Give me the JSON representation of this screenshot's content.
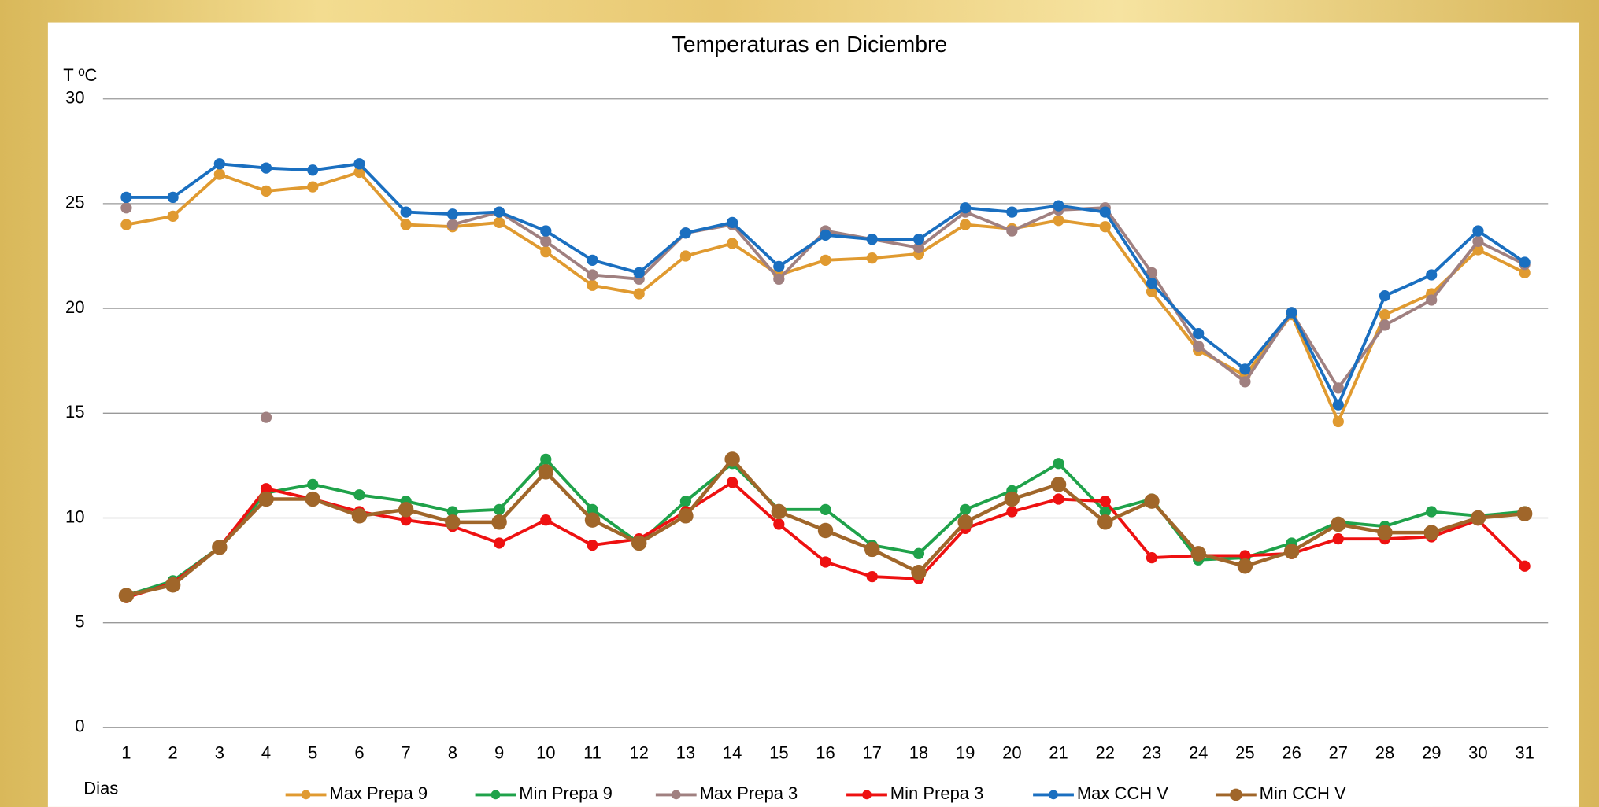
{
  "chart_data": {
    "type": "line",
    "title": "Temperaturas en Diciembre",
    "y_label": "T ºC",
    "x_label": "Dias",
    "categories": [
      "1",
      "2",
      "3",
      "4",
      "5",
      "6",
      "7",
      "8",
      "9",
      "10",
      "11",
      "12",
      "13",
      "14",
      "15",
      "16",
      "17",
      "18",
      "19",
      "20",
      "21",
      "22",
      "23",
      "24",
      "25",
      "26",
      "27",
      "28",
      "29",
      "30",
      "31"
    ],
    "ylim": [
      0,
      30
    ],
    "yticks": [
      0,
      5,
      10,
      15,
      20,
      25,
      30
    ],
    "grid": true,
    "legend": "bottom",
    "series": [
      {
        "name": "Max Prepa 9",
        "color": "#e09a30",
        "values": [
          24.0,
          24.4,
          26.4,
          25.6,
          25.8,
          26.5,
          24.0,
          23.9,
          24.1,
          22.7,
          21.1,
          20.7,
          22.5,
          23.1,
          21.6,
          22.3,
          22.4,
          22.6,
          24.0,
          23.8,
          24.2,
          23.9,
          20.8,
          18.0,
          16.8,
          19.7,
          14.6,
          19.7,
          20.7,
          22.8,
          21.7
        ]
      },
      {
        "name": "Min Prepa 9",
        "color": "#1fa24a",
        "values": [
          6.3,
          7.0,
          8.6,
          11.2,
          11.6,
          11.1,
          10.8,
          10.3,
          10.4,
          12.8,
          10.4,
          8.8,
          10.8,
          12.6,
          10.4,
          10.4,
          8.7,
          8.3,
          10.4,
          11.3,
          12.6,
          10.3,
          10.9,
          8.0,
          8.1,
          8.8,
          9.8,
          9.6,
          10.3,
          10.1,
          10.3
        ]
      },
      {
        "name": "Max Prepa 3",
        "color": "#a08080",
        "values": [
          24.8,
          null,
          null,
          14.8,
          null,
          null,
          null,
          24.0,
          24.6,
          23.2,
          21.6,
          21.4,
          23.6,
          24.0,
          21.4,
          23.7,
          23.3,
          22.9,
          24.6,
          23.7,
          24.7,
          24.8,
          21.7,
          18.2,
          16.5,
          19.8,
          16.2,
          19.2,
          20.4,
          23.2,
          22.1
        ]
      },
      {
        "name": "Min Prepa 3",
        "color": "#ee1111",
        "values": [
          6.2,
          6.9,
          8.6,
          11.4,
          10.9,
          10.3,
          9.9,
          9.6,
          8.8,
          9.9,
          8.7,
          9.0,
          10.3,
          11.7,
          9.7,
          7.9,
          7.2,
          7.1,
          9.5,
          10.3,
          10.9,
          10.8,
          8.1,
          8.2,
          8.2,
          8.3,
          9.0,
          9.0,
          9.1,
          9.9,
          7.7
        ]
      },
      {
        "name": "Max CCH V",
        "color": "#1a6fc0",
        "values": [
          25.3,
          25.3,
          26.9,
          26.7,
          26.6,
          26.9,
          24.6,
          24.5,
          24.6,
          23.7,
          22.3,
          21.7,
          23.6,
          24.1,
          22.0,
          23.5,
          23.3,
          23.3,
          24.8,
          24.6,
          24.9,
          24.6,
          21.2,
          18.8,
          17.1,
          19.8,
          15.4,
          20.6,
          21.6,
          23.7,
          22.2
        ]
      },
      {
        "name": "Min CCH V",
        "color": "#a0662a",
        "values": [
          6.3,
          6.8,
          8.6,
          10.9,
          10.9,
          10.1,
          10.4,
          9.8,
          9.8,
          12.2,
          9.9,
          8.8,
          10.1,
          12.8,
          10.3,
          9.4,
          8.5,
          7.4,
          9.8,
          10.9,
          11.6,
          9.8,
          10.8,
          8.3,
          7.7,
          8.4,
          9.7,
          9.3,
          9.3,
          10.0,
          10.2
        ]
      }
    ]
  }
}
